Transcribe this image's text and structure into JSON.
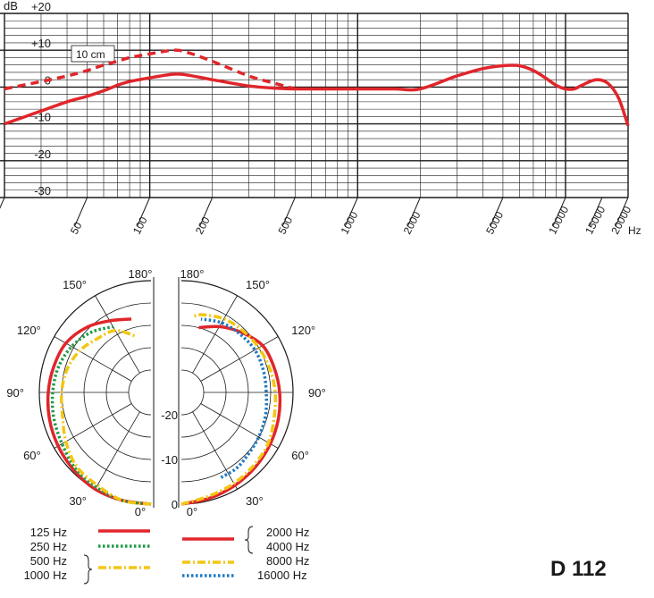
{
  "colors": {
    "red": "#e0262b",
    "green": "#1f9b48",
    "yellow": "#f3c613",
    "blue": "#1d79c1",
    "grid": "#1a1a1a"
  },
  "chart_data": [
    {
      "type": "line",
      "title": "",
      "xlabel": "Hz",
      "ylabel": "dB",
      "x_scale": "log",
      "xlim": [
        20,
        20000
      ],
      "ylim": [
        -30,
        20
      ],
      "x_ticks": [
        "20",
        "50",
        "100",
        "200",
        "500",
        "1000",
        "2000",
        "5000",
        "10000",
        "15000",
        "20000"
      ],
      "x_tick_values": [
        20,
        50,
        100,
        200,
        500,
        1000,
        2000,
        5000,
        10000,
        15000,
        20000
      ],
      "y_ticks": [
        "+20",
        "+10",
        "0",
        "-10",
        "-20",
        "-30"
      ],
      "y_tick_values": [
        20,
        10,
        0,
        -10,
        -20,
        -30
      ],
      "grid": true,
      "annotations": [
        "10 cm"
      ],
      "series": [
        {
          "style": "solid",
          "x": [
            20,
            30,
            40,
            50,
            60,
            70,
            80,
            100,
            130,
            150,
            200,
            300,
            400,
            500,
            700,
            1000,
            1500,
            2000,
            3000,
            4000,
            5000,
            6000,
            7000,
            8000,
            9000,
            10000,
            11000,
            12000,
            14000,
            16000,
            18000,
            20000
          ],
          "y": [
            -10,
            -6.5,
            -4,
            -2.5,
            -1,
            0.5,
            1.5,
            2.5,
            3.5,
            3.3,
            2,
            0.3,
            -0.3,
            -0.5,
            -0.5,
            -0.5,
            -0.5,
            -0.5,
            3,
            5,
            5.8,
            5.8,
            4.5,
            2.5,
            0.5,
            -0.5,
            -0.5,
            0.5,
            2,
            1,
            -3,
            -10.5
          ]
        },
        {
          "name": "10 cm",
          "style": "dashed",
          "x": [
            20,
            30,
            40,
            50,
            60,
            70,
            80,
            100,
            130,
            150,
            200,
            300,
            400,
            500
          ],
          "y": [
            -0.5,
            1.5,
            3,
            4.5,
            6,
            7,
            8,
            9,
            10,
            9.5,
            7,
            3,
            1,
            -0.5
          ]
        }
      ]
    },
    {
      "type": "polar",
      "title": "",
      "angle_ticks_left": [
        "180°",
        "150°",
        "120°",
        "90°",
        "60°",
        "30°",
        "0°"
      ],
      "angle_ticks_right": [
        "180°",
        "150°",
        "120°",
        "90°",
        "60°",
        "30°",
        "0°"
      ],
      "angle_tick_values": [
        180,
        150,
        120,
        90,
        60,
        30,
        0
      ],
      "radial_ticks": [
        "-20",
        "-10",
        "0"
      ],
      "radial_tick_values": [
        -20,
        -10,
        0
      ],
      "rlim": [
        -25,
        0
      ],
      "series_left": [
        {
          "name": "125 Hz\n250 Hz",
          "label": "125 Hz",
          "style": "solid",
          "color": "red",
          "theta": [
            0,
            15,
            30,
            45,
            60,
            75,
            90,
            105,
            120,
            135,
            150,
            165
          ],
          "r": [
            0,
            0,
            0,
            -0.5,
            -1,
            -1.5,
            -2,
            -2.5,
            -3,
            -4.5,
            -6.5,
            -8
          ]
        },
        {
          "label": "250 Hz",
          "style": "dotted",
          "color": "green",
          "theta": [
            0,
            15,
            30,
            45,
            60,
            75,
            90,
            105,
            120,
            135,
            150
          ],
          "r": [
            0,
            0,
            -0.5,
            -1,
            -2,
            -2.5,
            -3,
            -3.5,
            -4.5,
            -6,
            -8
          ]
        },
        {
          "label": "500 Hz",
          "style": "dashdot",
          "color": "yellow",
          "theta": [
            0,
            15,
            30,
            45,
            60,
            75,
            90,
            105,
            120,
            135,
            150,
            165
          ],
          "r": [
            0,
            0,
            -1,
            -1.5,
            -3,
            -4.5,
            -5,
            -5.5,
            -6.5,
            -8,
            -9,
            -12
          ]
        }
      ],
      "series_right": [
        {
          "label": "2000 Hz",
          "style": "solid",
          "color": "red",
          "theta": [
            0,
            15,
            30,
            45,
            60,
            75,
            90,
            105,
            120,
            135,
            150,
            165
          ],
          "r": [
            0,
            -0.5,
            -1,
            -1.5,
            -2,
            -2.5,
            -3,
            -3.5,
            -4,
            -6,
            -8,
            -10
          ]
        },
        {
          "label": "8000 Hz",
          "style": "dashdot",
          "color": "yellow",
          "theta": [
            0,
            15,
            30,
            45,
            60,
            75,
            90,
            105,
            120,
            135,
            150,
            165,
            172
          ],
          "r": [
            0,
            -1,
            -1.5,
            -2,
            -2.5,
            -3.5,
            -4,
            -4.5,
            -5,
            -5.5,
            -6,
            -7,
            -8
          ]
        },
        {
          "label": "16000 Hz",
          "style": "dotted",
          "color": "blue",
          "theta": [
            25,
            35,
            45,
            60,
            75,
            90,
            105,
            120,
            135,
            150,
            165
          ],
          "r": [
            -4,
            -4,
            -4.5,
            -5,
            -5.5,
            -6,
            -6,
            -6,
            -6.5,
            -7,
            -8
          ]
        }
      ]
    }
  ],
  "legend": {
    "left": {
      "items": [
        {
          "label": "125 Hz",
          "style": "solid",
          "color": "red"
        },
        {
          "label": "250 Hz",
          "style": "dotted",
          "color": "green"
        },
        {
          "label": "500 Hz",
          "style": "dashdot",
          "color": "yellow"
        },
        {
          "label": "1000 Hz",
          "style": "",
          "color": ""
        }
      ]
    },
    "right": {
      "items": [
        {
          "label": "2000 Hz",
          "style": "solid",
          "color": "red"
        },
        {
          "label": "4000 Hz",
          "style": "",
          "color": ""
        },
        {
          "label": "8000 Hz",
          "style": "dashdot",
          "color": "yellow"
        },
        {
          "label": "16000 Hz",
          "style": "dotted",
          "color": "blue"
        }
      ]
    }
  },
  "model_name": "D 112"
}
